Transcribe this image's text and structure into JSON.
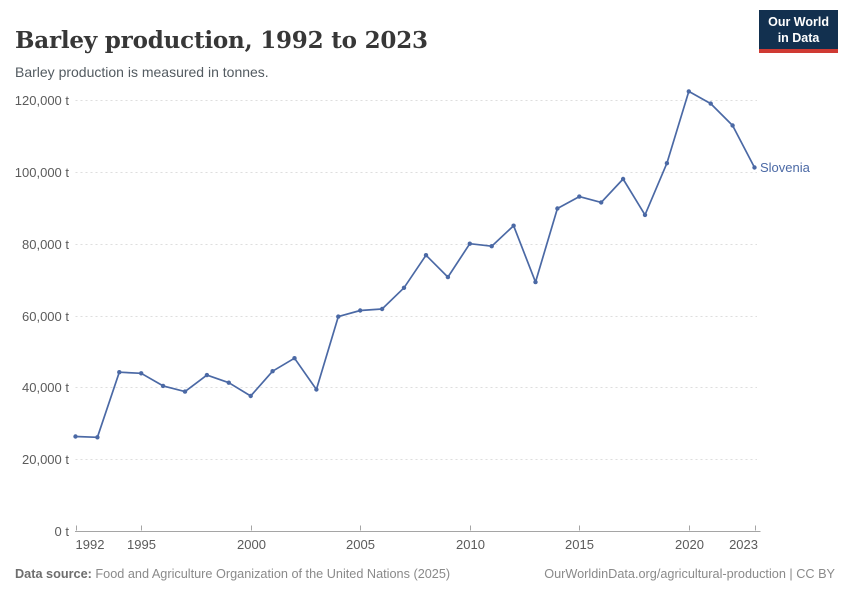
{
  "header": {
    "title": "Barley production, 1992 to 2023",
    "subtitle": "Barley production is measured in tonnes.",
    "logo": {
      "line1": "Our World",
      "line2": "in Data"
    }
  },
  "chart_data": {
    "type": "line",
    "title": "Barley production, 1992 to 2023",
    "unit": "tonnes",
    "grid": "horizontal-dashed",
    "legend_position": "entity label right of last point",
    "x_range": [
      1992,
      2023
    ],
    "ylim": [
      0,
      120000
    ],
    "yticks": [
      {
        "value": 0,
        "label": "0 t"
      },
      {
        "value": 20000,
        "label": "20,000 t"
      },
      {
        "value": 40000,
        "label": "40,000 t"
      },
      {
        "value": 60000,
        "label": "60,000 t"
      },
      {
        "value": 80000,
        "label": "80,000 t"
      },
      {
        "value": 100000,
        "label": "100,000 t"
      },
      {
        "value": 120000,
        "label": "120,000 t"
      }
    ],
    "xticks": [
      {
        "value": 1992,
        "label": "1992"
      },
      {
        "value": 1995,
        "label": "1995"
      },
      {
        "value": 2000,
        "label": "2000"
      },
      {
        "value": 2005,
        "label": "2005"
      },
      {
        "value": 2010,
        "label": "2010"
      },
      {
        "value": 2015,
        "label": "2015"
      },
      {
        "value": 2020,
        "label": "2020"
      },
      {
        "value": 2023,
        "label": "2023"
      }
    ],
    "series": [
      {
        "name": "Slovenia",
        "color": "#4b69a5",
        "x": [
          1992,
          1993,
          1994,
          1995,
          1996,
          1997,
          1998,
          1999,
          2000,
          2001,
          2002,
          2003,
          2004,
          2005,
          2006,
          2007,
          2008,
          2009,
          2010,
          2011,
          2012,
          2013,
          2014,
          2015,
          2016,
          2017,
          2018,
          2019,
          2020,
          2021,
          2022,
          2023
        ],
        "values": [
          26300,
          26100,
          44200,
          43900,
          40400,
          38800,
          43400,
          41300,
          37600,
          44500,
          48100,
          39400,
          59700,
          61400,
          61800,
          67700,
          76800,
          70700,
          80000,
          79300,
          85000,
          69300,
          89800,
          93100,
          91500,
          98000,
          88000,
          102400,
          122400,
          119000,
          112900,
          101200
        ]
      }
    ]
  },
  "footer": {
    "source_label": "Data source:",
    "source_text": " Food and Agriculture Organization of the United Nations (2025)",
    "link_text": "OurWorldinData.org/agricultural-production | CC BY"
  },
  "colors": {
    "line": "#4b69a5",
    "gridline": "#dedede",
    "axis": "#a5a5a5",
    "tick_text": "#5b5b5b",
    "logo_bg": "#12304f",
    "logo_accent": "#cf3a33"
  }
}
